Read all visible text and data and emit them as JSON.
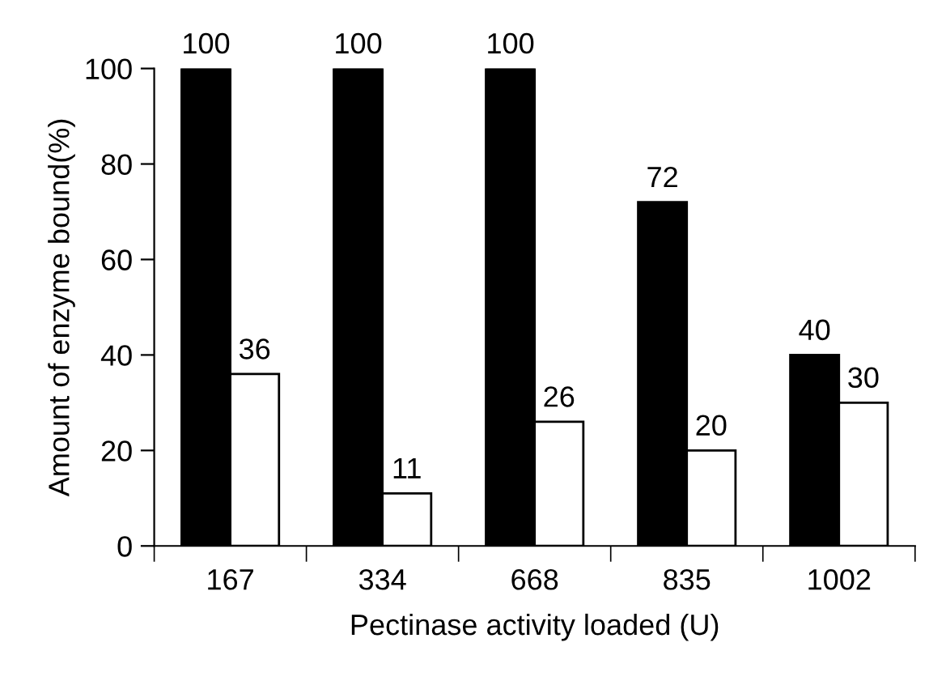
{
  "chart_data": {
    "type": "bar",
    "xlabel": "Pectinase activity loaded (U)",
    "ylabel": "Amount of enzyme bound(%)",
    "categories": [
      "167",
      "334",
      "668",
      "835",
      "1002"
    ],
    "series": [
      {
        "color": "#000000",
        "values": [
          100,
          100,
          100,
          72,
          40
        ]
      },
      {
        "color": "#ffffff",
        "values": [
          36,
          11,
          26,
          20,
          30
        ]
      }
    ],
    "ylim": [
      0,
      100
    ],
    "yticks": [
      0,
      20,
      40,
      60,
      80,
      100
    ],
    "data_labels": true,
    "grid": false,
    "legend": false
  }
}
